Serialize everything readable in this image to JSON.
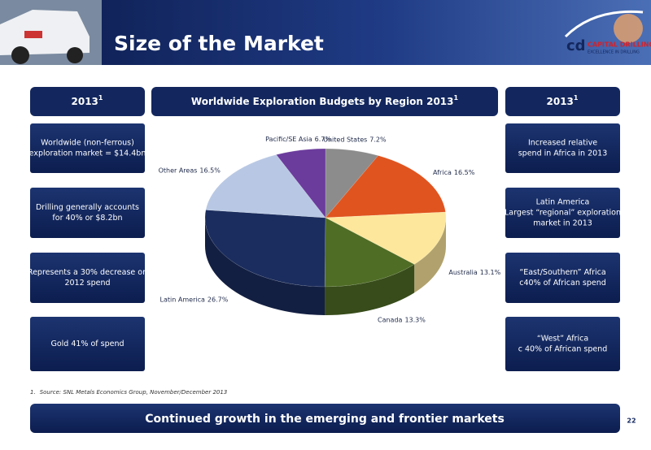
{
  "header": {
    "title": "Size of the Market",
    "logo": {
      "name": "CAPITAL DRILLING",
      "tagline": "EXCELLENCE IN DRILLING"
    }
  },
  "left": {
    "heading": "2013",
    "heading_note": "1",
    "items": [
      {
        "lines": [
          "Worldwide (non-ferrous)",
          "exploration market = $14.4bn"
        ]
      },
      {
        "lines": [
          "Drilling generally accounts",
          "for 40% or $8.2bn"
        ]
      },
      {
        "lines": [
          "Represents a 30% decrease on",
          "2012 spend"
        ]
      },
      {
        "lines": [
          "Gold 41% of spend"
        ]
      }
    ]
  },
  "right": {
    "heading": "2013",
    "heading_note": "1",
    "items": [
      {
        "lines": [
          "Increased relative",
          "spend in Africa in 2013"
        ]
      },
      {
        "lines": [
          "Latin America",
          "Largest “regional” exploration",
          "market in 2013"
        ]
      },
      {
        "lines": [
          "“East/Southern” Africa",
          "c40% of African spend"
        ]
      },
      {
        "lines": [
          "“West” Africa",
          "c 40% of African spend"
        ]
      }
    ]
  },
  "chart_data": {
    "type": "pie",
    "title": "Worldwide Exploration Budgets by Region 2013",
    "title_note": "1",
    "categories": [
      "United States",
      "Africa",
      "Australia",
      "Canada",
      "Latin America",
      "Other Areas",
      "Pacific/SE Asia"
    ],
    "values": [
      7.2,
      16.5,
      13.1,
      13.3,
      26.7,
      16.5,
      6.7
    ],
    "value_labels": [
      "7.2%",
      "16.5%",
      "13.1%",
      "13.3%",
      "26.7%",
      "16.5%",
      "6.7%"
    ],
    "colors": [
      "#8c8c8c",
      "#e0541f",
      "#fde79c",
      "#4f6d25",
      "#1b2d5e",
      "#b8c8e4",
      "#6b3c9c"
    ]
  },
  "footnote": {
    "number": "1.",
    "text": "Source: SNL Metals Economics Group, November/December 2013"
  },
  "footer": {
    "text": "Continued growth in the emerging and frontier markets",
    "page": "22"
  }
}
